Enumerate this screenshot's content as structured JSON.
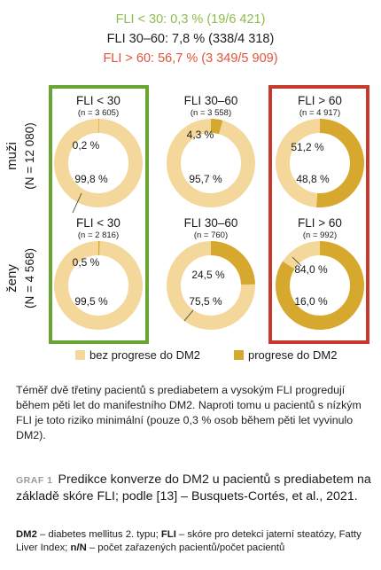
{
  "summary": {
    "line1": "FLI < 30: 0,3 % (19/6 421)",
    "line2": "FLI 30–60: 7,8 % (338/4 318)",
    "line3": "FLI > 60: 56,7 % (3 349/5 909)",
    "colors": {
      "low": "#8dbb4c",
      "mid": "#222222",
      "high": "#e0553a"
    }
  },
  "chart_data": {
    "type": "pie",
    "variant": "donut-grid",
    "series_names": [
      "bez progrese do DM2",
      "progrese do DM2"
    ],
    "colors": {
      "no_progression": "#f3d79b",
      "progression": "#d6a82e",
      "frame_low": "#69a534",
      "frame_high": "#c43a2e"
    },
    "rows": [
      {
        "label": "muži",
        "n_label": "(N = 12 080)",
        "panels": [
          {
            "title": "FLI < 30",
            "n": "(n = 3 605)",
            "progression_pct": 0.2,
            "no_progression_pct": 99.8,
            "progression_label": "0,2 %",
            "no_progression_label": "99,8 %"
          },
          {
            "title": "FLI 30–60",
            "n": "(n = 3 558)",
            "progression_pct": 4.3,
            "no_progression_pct": 95.7,
            "progression_label": "4,3 %",
            "no_progression_label": "95,7 %"
          },
          {
            "title": "FLI > 60",
            "n": "(n = 4 917)",
            "progression_pct": 51.2,
            "no_progression_pct": 48.8,
            "progression_label": "51,2 %",
            "no_progression_label": "48,8 %"
          }
        ]
      },
      {
        "label": "ženy",
        "n_label": "(N = 4 568)",
        "panels": [
          {
            "title": "FLI < 30",
            "n": "(n = 2 816)",
            "progression_pct": 0.5,
            "no_progression_pct": 99.5,
            "progression_label": "0,5 %",
            "no_progression_label": "99,5 %"
          },
          {
            "title": "FLI 30–60",
            "n": "(n = 760)",
            "progression_pct": 24.5,
            "no_progression_pct": 75.5,
            "progression_label": "24,5 %",
            "no_progression_label": "75,5 %"
          },
          {
            "title": "FLI > 60",
            "n": "(n = 992)",
            "progression_pct": 84.0,
            "no_progression_pct": 16.0,
            "progression_label": "84,0 %",
            "no_progression_label": "16,0 %"
          }
        ]
      }
    ],
    "legend": [
      "bez progrese do DM2",
      "progrese do DM2"
    ],
    "legend_position": "bottom"
  },
  "description": "Téměř dvě třetiny pacientů s prediabetem a vysokým FLI progredují během pěti let do manifestního DM2. Naproti tomu u pacientů s nízkým FLI je toto riziko minimální (pouze 0,3 % osob během pěti let vyvinulo DM2).",
  "graf": {
    "label": "GRAF 1",
    "title": "Predikce konverze do DM2 u pacientů s prediabetem na základě skóre FLI; podle [13] – Busquets-Cortés, et al., 2021."
  },
  "footnote": {
    "t1": "DM2",
    "d1": " – diabetes mellitus 2. typu; ",
    "t2": "FLI",
    "d2": " – skóre pro detekci jaterní steatózy, Fatty Liver Index; ",
    "t3": "n/N",
    "d3": " – počet zařazených pacientů/počet pacientů"
  }
}
